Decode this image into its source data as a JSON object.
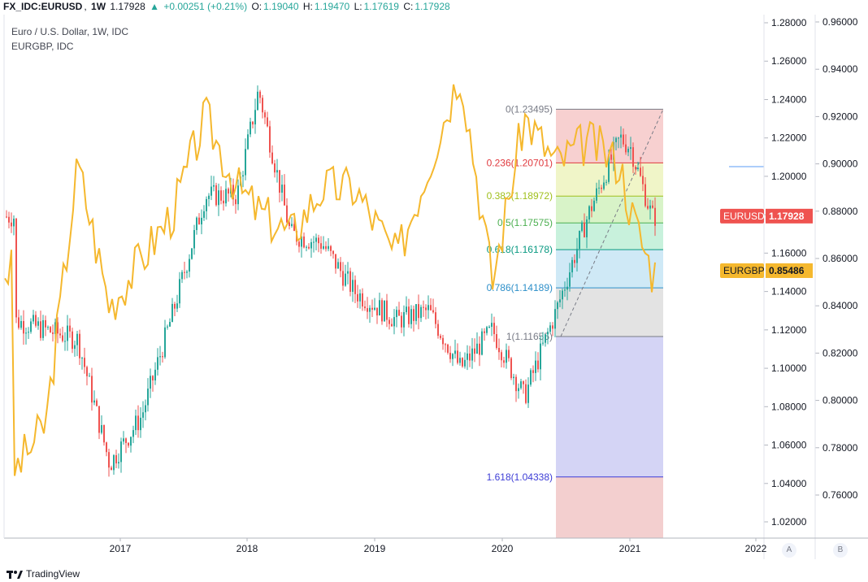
{
  "header": {
    "symbol": "FX_IDC:EURUSD",
    "interval": "1W",
    "price": "1.17928",
    "change": "+0.00251 (+0.21%)",
    "o_label": "O:",
    "o_value": "1.19040",
    "h_label": "H:",
    "h_value": "1.19470",
    "l_label": "L:",
    "l_value": "1.17619",
    "c_label": "C:",
    "c_value": "1.17928"
  },
  "legend": {
    "main": "Euro / U.S. Dollar, 1W, IDC",
    "secondary": "EURGBP, IDC"
  },
  "colors": {
    "up": "#26a69a",
    "down": "#ef5350",
    "eurgbp_line": "#f5b82e",
    "grid": "#e0e3eb",
    "axis_text": "#131722"
  },
  "axis_a": {
    "labels": [
      "1.28000",
      "1.26000",
      "1.24000",
      "1.22000",
      "1.20000",
      "1.18000",
      "1.16000",
      "1.14000",
      "1.12000",
      "1.10000",
      "1.08000",
      "1.06000",
      "1.04000",
      "1.02000"
    ],
    "badge": "EURUSD",
    "badge_value": "1.17928",
    "button": "A"
  },
  "axis_b": {
    "labels": [
      "0.96000",
      "0.94000",
      "0.92000",
      "0.90000",
      "0.88000",
      "0.86000",
      "0.84000",
      "0.82000",
      "0.80000",
      "0.78000",
      "0.76000"
    ],
    "badge": "EURGBP",
    "badge_value": "0.85486",
    "button": "B"
  },
  "time_axis": [
    "2017",
    "2018",
    "2019",
    "2020",
    "2021",
    "2022"
  ],
  "fib_levels": [
    {
      "label": "0(1.23495)",
      "value": 1.23495,
      "color": "#787b86"
    },
    {
      "label": "0.236(1.20701)",
      "value": 1.20701,
      "color": "#e0393e"
    },
    {
      "label": "0.382(1.18972)",
      "value": 1.18972,
      "color": "#a0c01d"
    },
    {
      "label": "0.5(1.17575)",
      "value": 1.17575,
      "color": "#4caf50"
    },
    {
      "label": "0.618(1.16178)",
      "value": 1.16178,
      "color": "#089981"
    },
    {
      "label": "0.786(1.14189)",
      "value": 1.14189,
      "color": "#2d8fc9"
    },
    {
      "label": "1(1.11655)",
      "value": 1.11655,
      "color": "#787b86"
    },
    {
      "label": "1.618(1.04338)",
      "value": 1.04338,
      "color": "#3d3dd6"
    }
  ],
  "chart_data": {
    "type": "line",
    "series": [
      {
        "name": "EURUSD",
        "kind": "candlestick",
        "x": [
          "2016-03",
          "2016-06",
          "2016-09",
          "2016-12",
          "2017-03",
          "2017-06",
          "2017-09",
          "2017-12",
          "2018-02",
          "2018-05",
          "2018-08",
          "2018-11",
          "2019-03",
          "2019-06",
          "2019-09",
          "2019-12",
          "2020-03",
          "2020-06",
          "2020-09",
          "2020-12",
          "2021-01",
          "2021-03"
        ],
        "y": [
          1.125,
          1.12,
          1.115,
          1.05,
          1.075,
          1.13,
          1.19,
          1.19,
          1.245,
          1.17,
          1.165,
          1.14,
          1.125,
          1.13,
          1.1,
          1.12,
          1.085,
          1.13,
          1.18,
          1.22,
          1.215,
          1.179
        ]
      },
      {
        "name": "EURGBP",
        "kind": "line",
        "x": [
          "2016-03",
          "2016-06",
          "2016-09",
          "2016-12",
          "2017-03",
          "2017-06",
          "2017-09",
          "2017-12",
          "2018-02",
          "2018-05",
          "2018-08",
          "2018-11",
          "2019-03",
          "2019-06",
          "2019-09",
          "2019-12",
          "2020-03",
          "2020-06",
          "2020-09",
          "2020-12",
          "2021-01",
          "2021-03"
        ],
        "y": [
          0.77,
          0.79,
          0.9,
          0.84,
          0.86,
          0.88,
          0.92,
          0.89,
          0.88,
          0.87,
          0.89,
          0.89,
          0.86,
          0.9,
          0.94,
          0.85,
          0.92,
          0.9,
          0.91,
          0.9,
          0.88,
          0.855
        ]
      }
    ],
    "ylim_a": [
      1.01,
      1.285
    ],
    "ylim_b": [
      0.745,
      0.965
    ],
    "xlim": [
      "2016-03",
      "2022-03"
    ]
  },
  "footer": {
    "brand": "TradingView"
  }
}
